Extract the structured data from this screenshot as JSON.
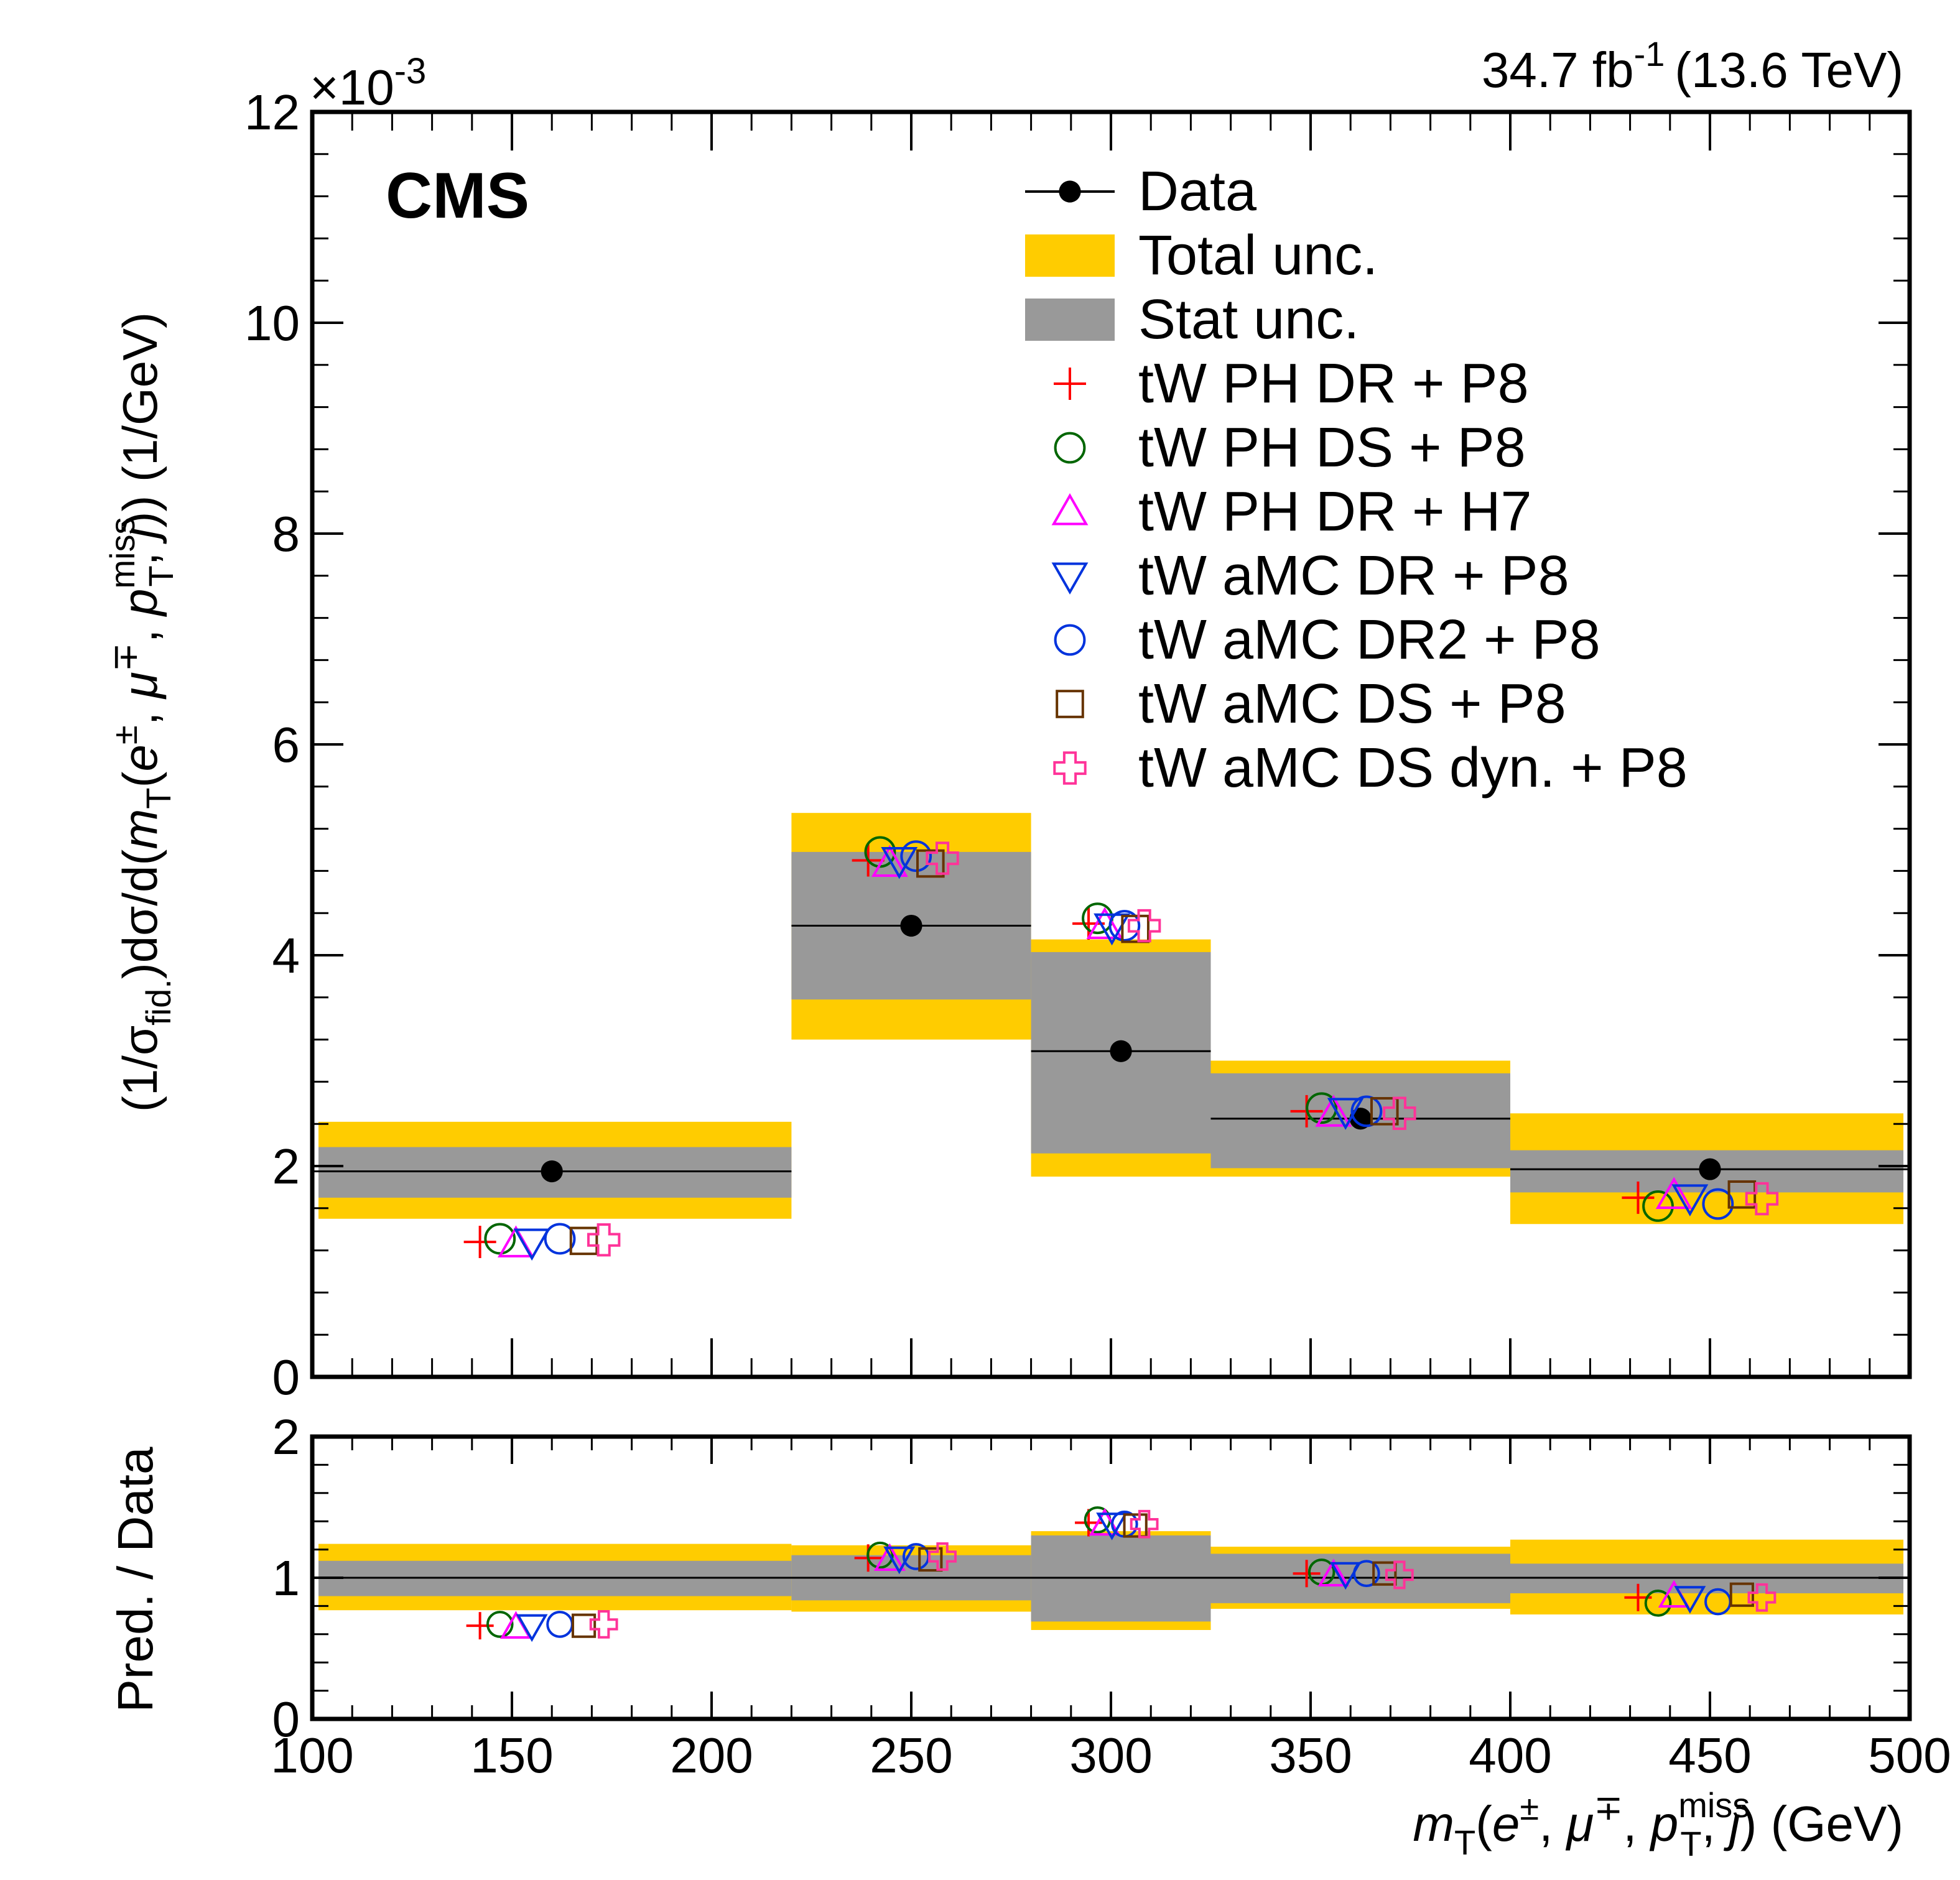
{
  "header": {
    "cms_label": "CMS",
    "lumi_label": "34.7 fb",
    "lumi_sup": "-1",
    "energy_label": "(13.6 TeV)",
    "exponent_label": "×10",
    "exponent_sup": "-3"
  },
  "colors": {
    "total_unc": "#ffcc00",
    "stat_unc": "#999999",
    "data": "#000000"
  },
  "legend_position": "top-right",
  "legend": [
    {
      "label": "Data",
      "marker": "data-point"
    },
    {
      "label": "Total unc.",
      "marker": "yellow-box"
    },
    {
      "label": "Stat unc.",
      "marker": "gray-box"
    },
    {
      "label": "tW PH DR + P8",
      "marker": "plus",
      "color": "#ff0000"
    },
    {
      "label": "tW PH DS + P8",
      "marker": "open-circle",
      "color": "#006600"
    },
    {
      "label": "tW PH DR + H7",
      "marker": "open-triangle-up",
      "color": "#ff00ff"
    },
    {
      "label": "tW aMC DR + P8",
      "marker": "open-triangle-down",
      "color": "#0033dd"
    },
    {
      "label": "tW aMC DR2 + P8",
      "marker": "open-circle",
      "color": "#0033dd"
    },
    {
      "label": "tW aMC DS + P8",
      "marker": "open-square",
      "color": "#663300"
    },
    {
      "label": "tW aMC DS dyn. + P8",
      "marker": "open-cross",
      "color": "#ff3399"
    }
  ],
  "axes": {
    "main_ylabel": "(1/σfid.)dσ/d(mT(e±, μ∓, pTmiss, j)) (1/GeV)",
    "ratio_ylabel": "Pred. / Data",
    "xlabel": "mT(e±, μ∓, pTmiss, j) (GeV)"
  },
  "chart_data": {
    "type": "bar",
    "x_bin_edges": [
      100,
      220,
      280,
      325,
      400,
      500
    ],
    "xlim": [
      100,
      500
    ],
    "x_ticks": [
      100,
      150,
      200,
      250,
      300,
      350,
      400,
      450,
      500
    ],
    "main": {
      "ylim": [
        0,
        12
      ],
      "y_scale_factor": "×10^-3",
      "y_ticks": [
        0,
        2,
        4,
        6,
        8,
        10,
        12
      ],
      "data": {
        "x": [
          160,
          250,
          302.5,
          362.5,
          450
        ],
        "y": [
          1.95,
          4.28,
          3.09,
          2.45,
          1.97
        ]
      },
      "total_unc": {
        "low": [
          1.5,
          3.2,
          1.9,
          1.9,
          1.45
        ],
        "high": [
          2.42,
          5.35,
          4.15,
          3.0,
          2.5
        ]
      },
      "stat_unc": {
        "low": [
          1.7,
          3.58,
          2.12,
          1.98,
          1.75
        ],
        "high": [
          2.18,
          4.98,
          4.03,
          2.88,
          2.15
        ]
      },
      "series": [
        {
          "name": "tW PH DR + P8",
          "values": [
            1.28,
            4.9,
            4.3,
            2.52,
            1.7
          ]
        },
        {
          "name": "tW PH DS + P8",
          "values": [
            1.31,
            4.98,
            4.35,
            2.55,
            1.62
          ]
        },
        {
          "name": "tW PH DR + H7",
          "values": [
            1.26,
            4.87,
            4.28,
            2.5,
            1.72
          ]
        },
        {
          "name": "tW aMC DR + P8",
          "values": [
            1.28,
            4.9,
            4.27,
            2.52,
            1.7
          ]
        },
        {
          "name": "tW aMC DR2 + P8",
          "values": [
            1.31,
            4.94,
            4.28,
            2.52,
            1.64
          ]
        },
        {
          "name": "tW aMC DS + P8",
          "values": [
            1.29,
            4.87,
            4.25,
            2.52,
            1.73
          ]
        },
        {
          "name": "tW aMC DS dyn. + P8",
          "values": [
            1.3,
            4.92,
            4.28,
            2.5,
            1.69
          ]
        }
      ]
    },
    "ratio": {
      "ylim": [
        0,
        2
      ],
      "y_ticks": [
        0,
        1,
        2
      ],
      "total_unc": {
        "low": [
          0.77,
          0.76,
          0.63,
          0.78,
          0.74
        ],
        "high": [
          1.24,
          1.23,
          1.33,
          1.22,
          1.27
        ]
      },
      "stat_unc": {
        "low": [
          0.87,
          0.84,
          0.69,
          0.82,
          0.89
        ],
        "high": [
          1.12,
          1.16,
          1.3,
          1.17,
          1.1
        ]
      },
      "series": [
        {
          "name": "tW PH DR + P8",
          "values": [
            0.66,
            1.14,
            1.39,
            1.03,
            0.86
          ]
        },
        {
          "name": "tW PH DS + P8",
          "values": [
            0.67,
            1.16,
            1.41,
            1.04,
            0.82
          ]
        },
        {
          "name": "tW PH DR + H7",
          "values": [
            0.65,
            1.13,
            1.38,
            1.02,
            0.87
          ]
        },
        {
          "name": "tW aMC DR + P8",
          "values": [
            0.66,
            1.14,
            1.38,
            1.03,
            0.86
          ]
        },
        {
          "name": "tW aMC DR2 + P8",
          "values": [
            0.67,
            1.15,
            1.38,
            1.03,
            0.83
          ]
        },
        {
          "name": "tW aMC DS + P8",
          "values": [
            0.66,
            1.13,
            1.37,
            1.03,
            0.88
          ]
        },
        {
          "name": "tW aMC DS dyn. + P8",
          "values": [
            0.67,
            1.15,
            1.38,
            1.02,
            0.86
          ]
        }
      ]
    }
  }
}
